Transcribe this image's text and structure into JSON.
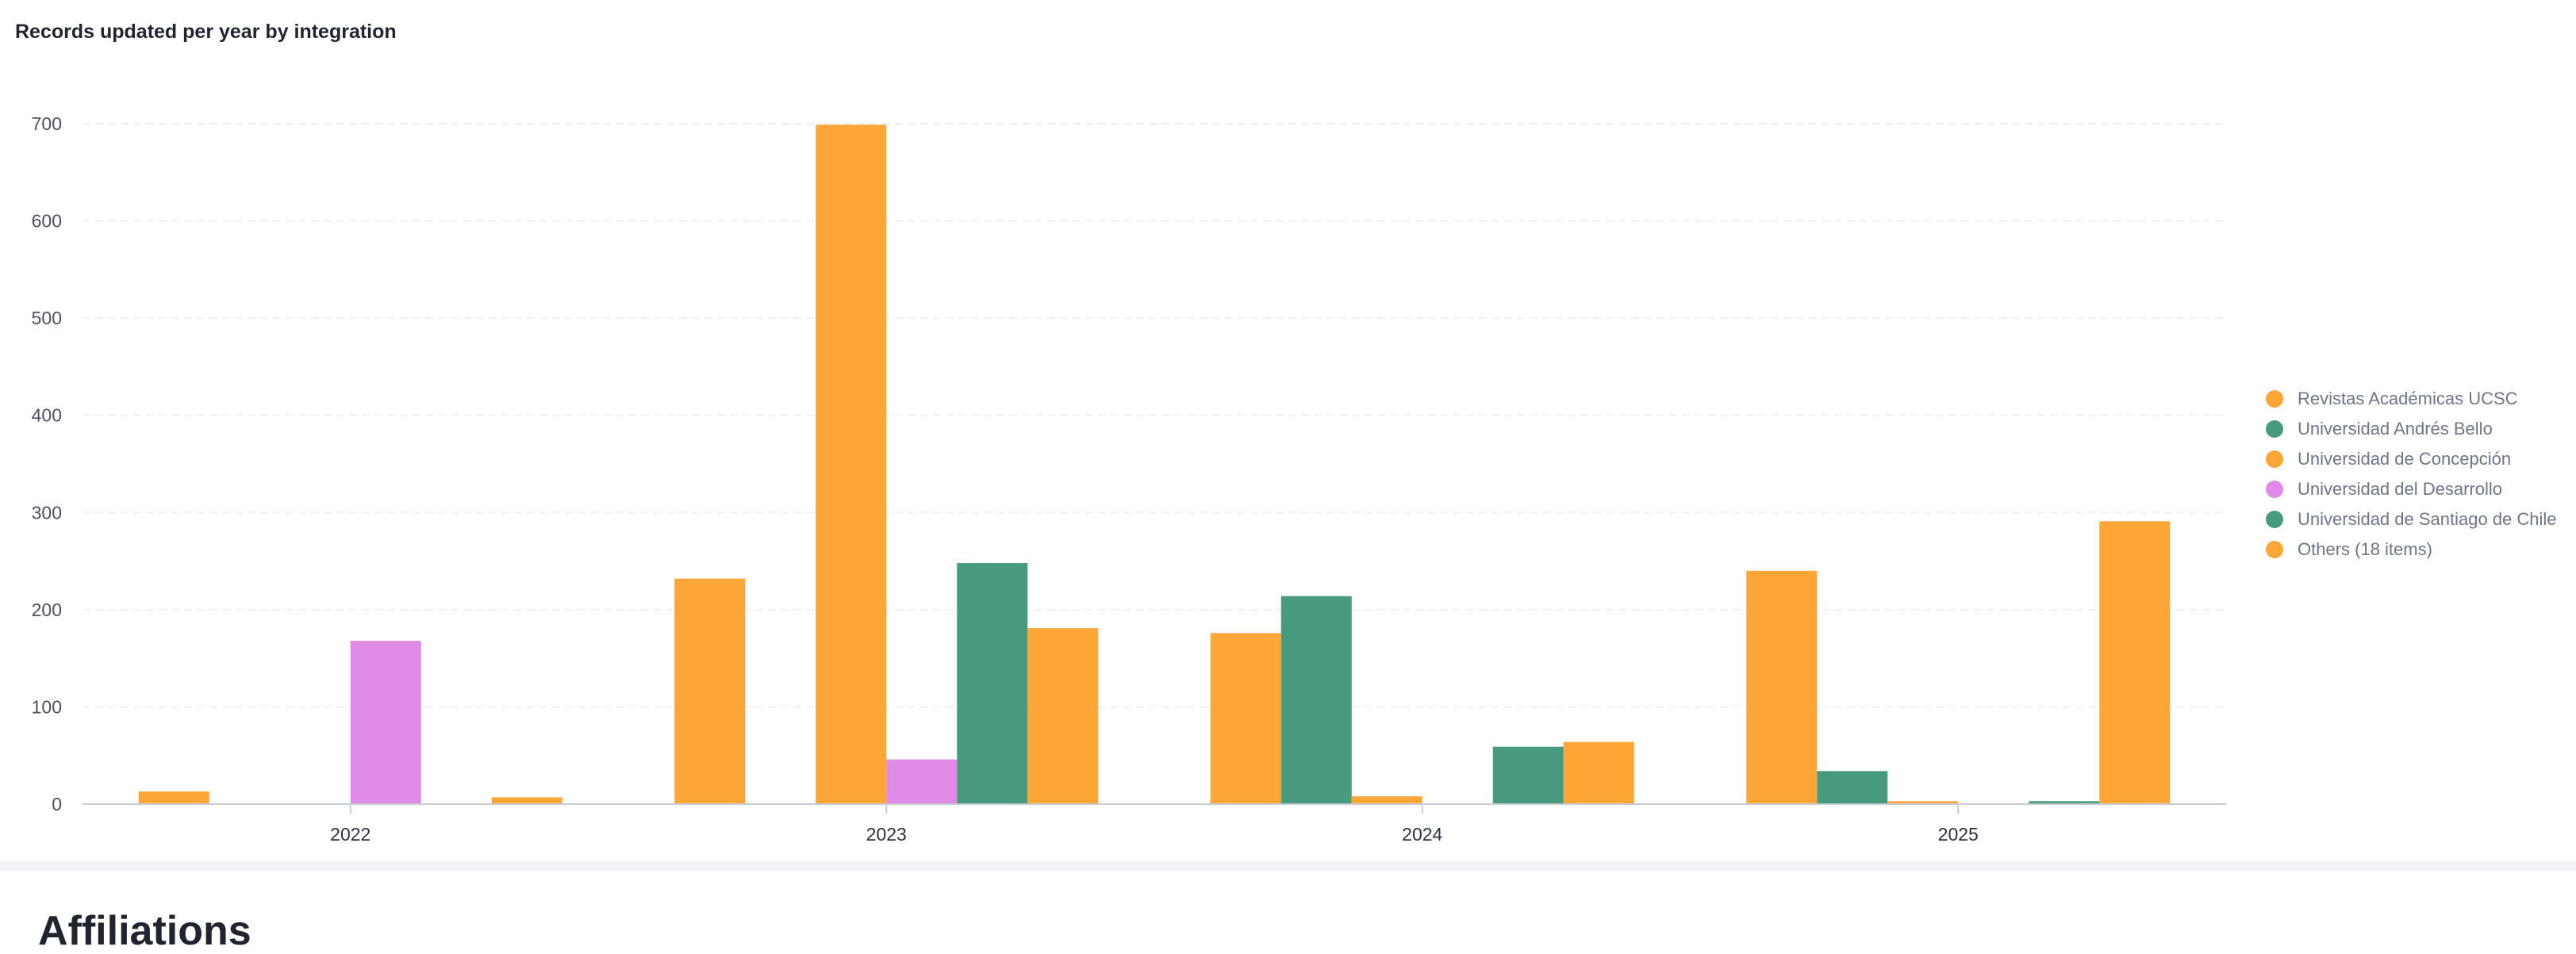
{
  "chart_data": {
    "type": "bar",
    "title": "Records updated per year by integration",
    "xlabel": "",
    "ylabel": "",
    "categories": [
      "2022",
      "2023",
      "2024",
      "2025"
    ],
    "ylim": [
      0,
      700
    ],
    "yticks": [
      0,
      100,
      200,
      300,
      400,
      500,
      600,
      700
    ],
    "grid": true,
    "legend_position": "right",
    "series": [
      {
        "name": "Revistas Académicas UCSC",
        "color": "#fea637",
        "values": [
          13,
          232,
          176,
          240
        ]
      },
      {
        "name": "Universidad Andrés Bello",
        "color": "#489a7f",
        "values": [
          0,
          0,
          214,
          34
        ]
      },
      {
        "name": "Universidad de Concepción",
        "color": "#fea637",
        "values": [
          0,
          699,
          8,
          3
        ]
      },
      {
        "name": "Universidad del Desarrollo",
        "color": "#df8be5",
        "values": [
          168,
          46,
          0,
          0
        ]
      },
      {
        "name": "Universidad de Santiago de Chile",
        "color": "#489a7f",
        "values": [
          0,
          248,
          59,
          3
        ]
      },
      {
        "name": "Others (18 items)",
        "color": "#fea637",
        "values": [
          7,
          181,
          64,
          291
        ]
      }
    ]
  },
  "next_section": {
    "title": "Affiliations"
  }
}
